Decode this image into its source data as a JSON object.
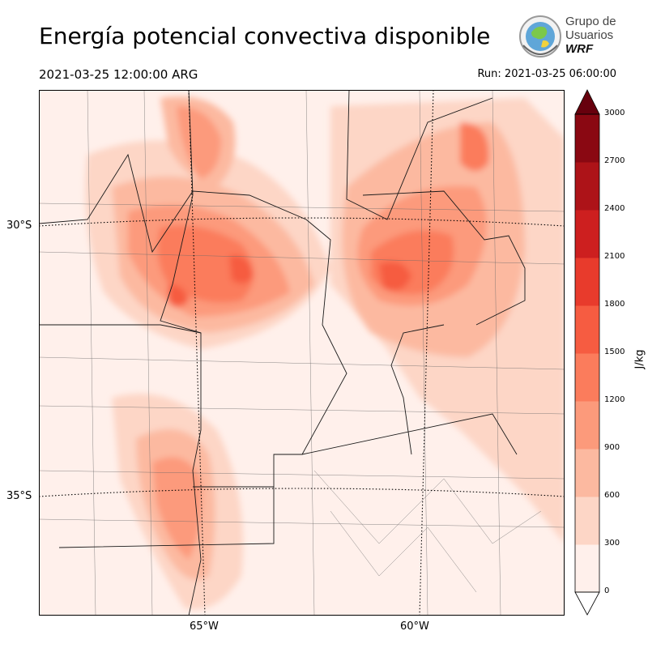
{
  "title": "Energía potencial convectiva disponible",
  "valid_time": "2021-03-25 12:00:00 ARG",
  "run_time": "Run: 2021-03-25 06:00:00",
  "logo": {
    "line1": "Grupo de",
    "line2": "Usuarios",
    "line3": "WRF"
  },
  "lat_labels": [
    "30°S",
    "35°S"
  ],
  "lon_labels": [
    "65°W",
    "60°W"
  ],
  "colorbar": {
    "unit": "J/kg",
    "ticks": [
      "0",
      "300",
      "600",
      "900",
      "1200",
      "1500",
      "1800",
      "2100",
      "2400",
      "2700",
      "3000"
    ],
    "colors": [
      "#fff0eb",
      "#fdd6c6",
      "#fcb9a0",
      "#fc9a7b",
      "#fb7c5c",
      "#f65c41",
      "#e83b2c",
      "#cd1f1f",
      "#ad1318",
      "#8a0812",
      "#67000d"
    ]
  }
}
